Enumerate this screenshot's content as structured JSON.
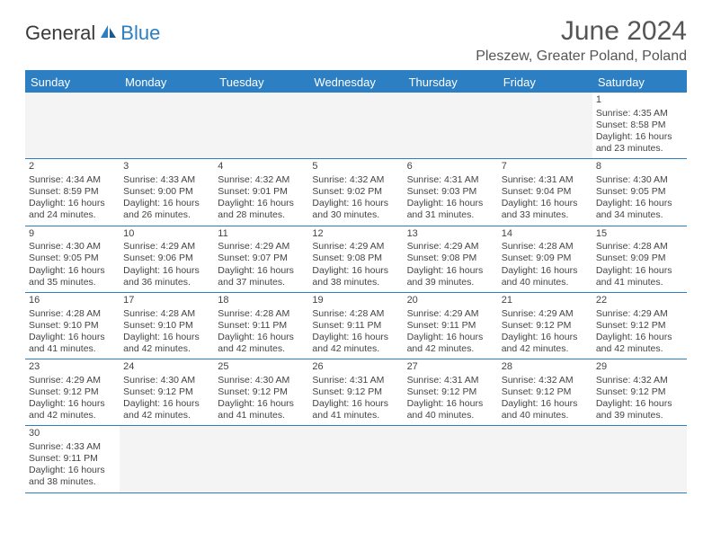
{
  "logo": {
    "general": "General",
    "blue": "Blue"
  },
  "title": "June 2024",
  "location": "Pleszew, Greater Poland, Poland",
  "colors": {
    "brand": "#2b7fc2",
    "text": "#444444",
    "header_text": "#ffffff",
    "bg": "#ffffff",
    "empty_bg": "#f4f4f4"
  },
  "day_headers": [
    "Sunday",
    "Monday",
    "Tuesday",
    "Wednesday",
    "Thursday",
    "Friday",
    "Saturday"
  ],
  "weeks": [
    [
      null,
      null,
      null,
      null,
      null,
      null,
      {
        "day": "1",
        "sunrise": "Sunrise: 4:35 AM",
        "sunset": "Sunset: 8:58 PM",
        "daylight1": "Daylight: 16 hours",
        "daylight2": "and 23 minutes."
      }
    ],
    [
      {
        "day": "2",
        "sunrise": "Sunrise: 4:34 AM",
        "sunset": "Sunset: 8:59 PM",
        "daylight1": "Daylight: 16 hours",
        "daylight2": "and 24 minutes."
      },
      {
        "day": "3",
        "sunrise": "Sunrise: 4:33 AM",
        "sunset": "Sunset: 9:00 PM",
        "daylight1": "Daylight: 16 hours",
        "daylight2": "and 26 minutes."
      },
      {
        "day": "4",
        "sunrise": "Sunrise: 4:32 AM",
        "sunset": "Sunset: 9:01 PM",
        "daylight1": "Daylight: 16 hours",
        "daylight2": "and 28 minutes."
      },
      {
        "day": "5",
        "sunrise": "Sunrise: 4:32 AM",
        "sunset": "Sunset: 9:02 PM",
        "daylight1": "Daylight: 16 hours",
        "daylight2": "and 30 minutes."
      },
      {
        "day": "6",
        "sunrise": "Sunrise: 4:31 AM",
        "sunset": "Sunset: 9:03 PM",
        "daylight1": "Daylight: 16 hours",
        "daylight2": "and 31 minutes."
      },
      {
        "day": "7",
        "sunrise": "Sunrise: 4:31 AM",
        "sunset": "Sunset: 9:04 PM",
        "daylight1": "Daylight: 16 hours",
        "daylight2": "and 33 minutes."
      },
      {
        "day": "8",
        "sunrise": "Sunrise: 4:30 AM",
        "sunset": "Sunset: 9:05 PM",
        "daylight1": "Daylight: 16 hours",
        "daylight2": "and 34 minutes."
      }
    ],
    [
      {
        "day": "9",
        "sunrise": "Sunrise: 4:30 AM",
        "sunset": "Sunset: 9:05 PM",
        "daylight1": "Daylight: 16 hours",
        "daylight2": "and 35 minutes."
      },
      {
        "day": "10",
        "sunrise": "Sunrise: 4:29 AM",
        "sunset": "Sunset: 9:06 PM",
        "daylight1": "Daylight: 16 hours",
        "daylight2": "and 36 minutes."
      },
      {
        "day": "11",
        "sunrise": "Sunrise: 4:29 AM",
        "sunset": "Sunset: 9:07 PM",
        "daylight1": "Daylight: 16 hours",
        "daylight2": "and 37 minutes."
      },
      {
        "day": "12",
        "sunrise": "Sunrise: 4:29 AM",
        "sunset": "Sunset: 9:08 PM",
        "daylight1": "Daylight: 16 hours",
        "daylight2": "and 38 minutes."
      },
      {
        "day": "13",
        "sunrise": "Sunrise: 4:29 AM",
        "sunset": "Sunset: 9:08 PM",
        "daylight1": "Daylight: 16 hours",
        "daylight2": "and 39 minutes."
      },
      {
        "day": "14",
        "sunrise": "Sunrise: 4:28 AM",
        "sunset": "Sunset: 9:09 PM",
        "daylight1": "Daylight: 16 hours",
        "daylight2": "and 40 minutes."
      },
      {
        "day": "15",
        "sunrise": "Sunrise: 4:28 AM",
        "sunset": "Sunset: 9:09 PM",
        "daylight1": "Daylight: 16 hours",
        "daylight2": "and 41 minutes."
      }
    ],
    [
      {
        "day": "16",
        "sunrise": "Sunrise: 4:28 AM",
        "sunset": "Sunset: 9:10 PM",
        "daylight1": "Daylight: 16 hours",
        "daylight2": "and 41 minutes."
      },
      {
        "day": "17",
        "sunrise": "Sunrise: 4:28 AM",
        "sunset": "Sunset: 9:10 PM",
        "daylight1": "Daylight: 16 hours",
        "daylight2": "and 42 minutes."
      },
      {
        "day": "18",
        "sunrise": "Sunrise: 4:28 AM",
        "sunset": "Sunset: 9:11 PM",
        "daylight1": "Daylight: 16 hours",
        "daylight2": "and 42 minutes."
      },
      {
        "day": "19",
        "sunrise": "Sunrise: 4:28 AM",
        "sunset": "Sunset: 9:11 PM",
        "daylight1": "Daylight: 16 hours",
        "daylight2": "and 42 minutes."
      },
      {
        "day": "20",
        "sunrise": "Sunrise: 4:29 AM",
        "sunset": "Sunset: 9:11 PM",
        "daylight1": "Daylight: 16 hours",
        "daylight2": "and 42 minutes."
      },
      {
        "day": "21",
        "sunrise": "Sunrise: 4:29 AM",
        "sunset": "Sunset: 9:12 PM",
        "daylight1": "Daylight: 16 hours",
        "daylight2": "and 42 minutes."
      },
      {
        "day": "22",
        "sunrise": "Sunrise: 4:29 AM",
        "sunset": "Sunset: 9:12 PM",
        "daylight1": "Daylight: 16 hours",
        "daylight2": "and 42 minutes."
      }
    ],
    [
      {
        "day": "23",
        "sunrise": "Sunrise: 4:29 AM",
        "sunset": "Sunset: 9:12 PM",
        "daylight1": "Daylight: 16 hours",
        "daylight2": "and 42 minutes."
      },
      {
        "day": "24",
        "sunrise": "Sunrise: 4:30 AM",
        "sunset": "Sunset: 9:12 PM",
        "daylight1": "Daylight: 16 hours",
        "daylight2": "and 42 minutes."
      },
      {
        "day": "25",
        "sunrise": "Sunrise: 4:30 AM",
        "sunset": "Sunset: 9:12 PM",
        "daylight1": "Daylight: 16 hours",
        "daylight2": "and 41 minutes."
      },
      {
        "day": "26",
        "sunrise": "Sunrise: 4:31 AM",
        "sunset": "Sunset: 9:12 PM",
        "daylight1": "Daylight: 16 hours",
        "daylight2": "and 41 minutes."
      },
      {
        "day": "27",
        "sunrise": "Sunrise: 4:31 AM",
        "sunset": "Sunset: 9:12 PM",
        "daylight1": "Daylight: 16 hours",
        "daylight2": "and 40 minutes."
      },
      {
        "day": "28",
        "sunrise": "Sunrise: 4:32 AM",
        "sunset": "Sunset: 9:12 PM",
        "daylight1": "Daylight: 16 hours",
        "daylight2": "and 40 minutes."
      },
      {
        "day": "29",
        "sunrise": "Sunrise: 4:32 AM",
        "sunset": "Sunset: 9:12 PM",
        "daylight1": "Daylight: 16 hours",
        "daylight2": "and 39 minutes."
      }
    ],
    [
      {
        "day": "30",
        "sunrise": "Sunrise: 4:33 AM",
        "sunset": "Sunset: 9:11 PM",
        "daylight1": "Daylight: 16 hours",
        "daylight2": "and 38 minutes."
      },
      null,
      null,
      null,
      null,
      null,
      null
    ]
  ]
}
